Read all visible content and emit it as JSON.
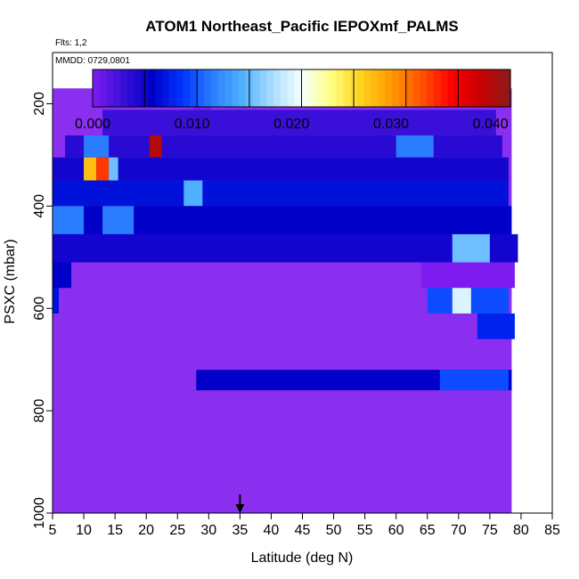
{
  "chart_data": {
    "type": "heatmap",
    "title": "ATOM1 Northeast_Pacific IEPOXmf_PALMS",
    "flights_text": "Flts: 1,2",
    "date_text": "MMDD: 0729,0801",
    "xlabel": "Latitude (deg N)",
    "ylabel": "PSXC (mbar)",
    "xlim": [
      5,
      85
    ],
    "ylim": [
      1000,
      100
    ],
    "y_inverted": true,
    "x_ticks": [
      5,
      10,
      15,
      20,
      25,
      30,
      35,
      40,
      45,
      50,
      55,
      60,
      65,
      70,
      75,
      80,
      85
    ],
    "y_ticks": [
      200,
      400,
      600,
      800,
      1000
    ],
    "colorbar": {
      "min": 0.0,
      "max": 0.042,
      "ticks": [
        "0.000",
        "0.010",
        "0.020",
        "0.030",
        "0.040"
      ],
      "colors": [
        "#7e1cf0",
        "#3a10d8",
        "#0000c8",
        "#0033ff",
        "#2a7dff",
        "#4fb0ff",
        "#a8dcff",
        "#f4ffff",
        "#ffff80",
        "#ffd11a",
        "#ff9900",
        "#ff5500",
        "#ff0000",
        "#c80000",
        "#8b1a1a"
      ]
    },
    "arrow_latitude": 35,
    "background_color": "#8a2ff0",
    "cells": [
      {
        "lat": [
          27.5,
          30.5
        ],
        "p": [
          170,
          212
        ],
        "v": 0.0
      },
      {
        "lat": [
          13,
          76
        ],
        "p": [
          212,
          262
        ],
        "v": 0.003
      },
      {
        "lat": [
          7,
          77
        ],
        "p": [
          262,
          305
        ],
        "v": 0.004
      },
      {
        "lat": [
          10,
          14
        ],
        "p": [
          262,
          305
        ],
        "v": 0.012
      },
      {
        "lat": [
          20.5,
          22.5
        ],
        "p": [
          262,
          305
        ],
        "v": 0.04
      },
      {
        "lat": [
          60,
          66
        ],
        "p": [
          262,
          305
        ],
        "v": 0.012
      },
      {
        "lat": [
          5,
          78
        ],
        "p": [
          305,
          350
        ],
        "v": 0.005
      },
      {
        "lat": [
          10,
          12
        ],
        "p": [
          305,
          350
        ],
        "v": 0.028
      },
      {
        "lat": [
          12,
          14
        ],
        "p": [
          305,
          350
        ],
        "v": 0.034
      },
      {
        "lat": [
          14,
          15.5
        ],
        "p": [
          305,
          350
        ],
        "v": 0.016
      },
      {
        "lat": [
          5,
          78
        ],
        "p": [
          350,
          400
        ],
        "v": 0.007
      },
      {
        "lat": [
          26,
          29
        ],
        "p": [
          350,
          400
        ],
        "v": 0.015
      },
      {
        "lat": [
          5,
          78.5
        ],
        "p": [
          400,
          455
        ],
        "v": 0.006
      },
      {
        "lat": [
          5,
          10
        ],
        "p": [
          400,
          455
        ],
        "v": 0.012
      },
      {
        "lat": [
          13,
          18
        ],
        "p": [
          400,
          455
        ],
        "v": 0.012
      },
      {
        "lat": [
          5,
          79.5
        ],
        "p": [
          455,
          510
        ],
        "v": 0.005
      },
      {
        "lat": [
          69,
          75
        ],
        "p": [
          455,
          510
        ],
        "v": 0.016
      },
      {
        "lat": [
          5,
          8
        ],
        "p": [
          510,
          560
        ],
        "v": 0.006
      },
      {
        "lat": [
          64,
          79
        ],
        "p": [
          510,
          560
        ],
        "v": 0.0
      },
      {
        "lat": [
          5,
          6
        ],
        "p": [
          560,
          610
        ],
        "v": 0.007
      },
      {
        "lat": [
          65,
          78
        ],
        "p": [
          560,
          610
        ],
        "v": 0.01
      },
      {
        "lat": [
          69,
          72
        ],
        "p": [
          560,
          610
        ],
        "v": 0.02
      },
      {
        "lat": [
          73,
          79
        ],
        "p": [
          610,
          660
        ],
        "v": 0.008
      },
      {
        "lat": [
          28,
          78.5
        ],
        "p": [
          720,
          760
        ],
        "v": 0.006
      },
      {
        "lat": [
          67,
          78
        ],
        "p": [
          720,
          760
        ],
        "v": 0.01
      }
    ]
  }
}
